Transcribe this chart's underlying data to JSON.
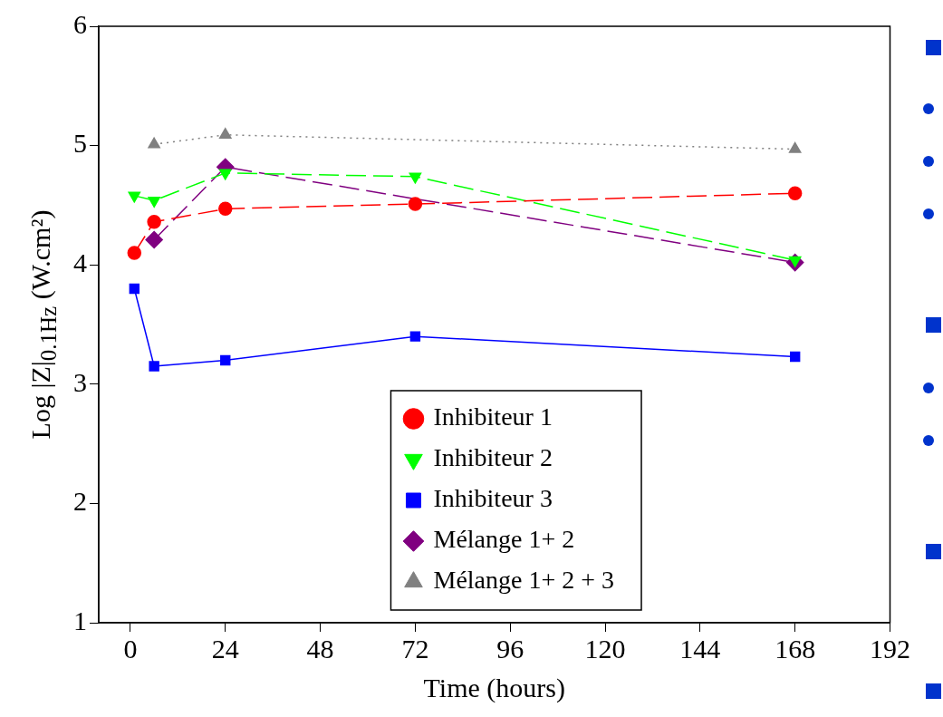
{
  "chart_data": {
    "type": "line",
    "xlabel": "Time (hours)",
    "ylabel": "Log |Z|$_{0.1Hz}$ (W.cm²)",
    "xlim": [
      -8,
      192
    ],
    "xticks": [
      0,
      24,
      48,
      72,
      96,
      120,
      144,
      168,
      192
    ],
    "ylim": [
      1,
      6
    ],
    "yticks": [
      1,
      2,
      3,
      4,
      5,
      6
    ],
    "grid": false,
    "legend": "bottom",
    "series": [
      {
        "name": "Inhibiteur 1",
        "color": "#ff0000",
        "marker": "circle",
        "line_style": "dashed",
        "x": [
          1,
          6,
          24,
          72,
          168
        ],
        "values": [
          4.1,
          4.36,
          4.47,
          4.51,
          4.6
        ]
      },
      {
        "name": "Inhibiteur 2",
        "color": "#00ff00",
        "marker": "triangle-down",
        "line_style": "dashed",
        "x": [
          1,
          6,
          24,
          72,
          168
        ],
        "values": [
          4.58,
          4.54,
          4.77,
          4.74,
          4.04
        ]
      },
      {
        "name": "Inhibiteur 3",
        "color": "#0000ff",
        "marker": "square",
        "line_style": "solid",
        "x": [
          1,
          6,
          24,
          72,
          168
        ],
        "values": [
          3.8,
          3.15,
          3.2,
          3.4,
          3.23
        ]
      },
      {
        "name": "Mélange 1+ 2",
        "color": "#800080",
        "marker": "diamond",
        "line_style": "dashed",
        "x": [
          6,
          24,
          168
        ],
        "values": [
          4.21,
          4.82,
          4.02
        ]
      },
      {
        "name": "Mélange 1+ 2 + 3",
        "color": "#808080",
        "marker": "triangle",
        "line_style": "dotted",
        "x": [
          6,
          24,
          168
        ],
        "values": [
          5.01,
          5.09,
          4.97
        ]
      }
    ]
  }
}
